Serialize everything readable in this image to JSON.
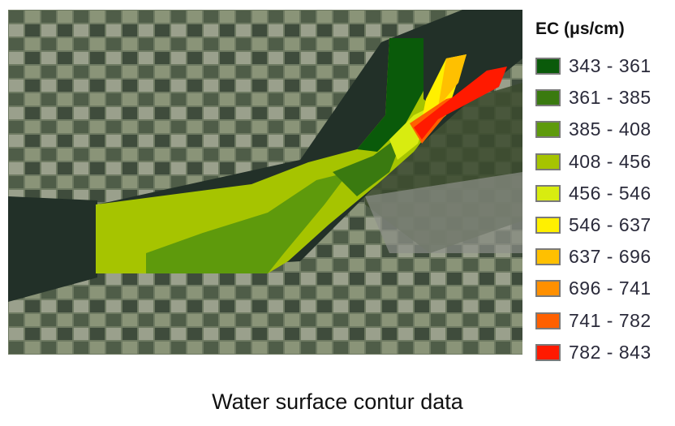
{
  "legend": {
    "title": "EC (μs/cm)",
    "items": [
      {
        "label": "343 - 361",
        "color": "#0a5a0a"
      },
      {
        "label": "361 - 385",
        "color": "#3a7a10"
      },
      {
        "label": "385 - 408",
        "color": "#5e9a0c"
      },
      {
        "label": "408 - 456",
        "color": "#a6c400"
      },
      {
        "label": "456 - 546",
        "color": "#d8ec10"
      },
      {
        "label": "546 - 637",
        "color": "#fff000"
      },
      {
        "label": "637 - 696",
        "color": "#ffc000"
      },
      {
        "label": "696 - 741",
        "color": "#ff9000"
      },
      {
        "label": "741 - 782",
        "color": "#ff6000"
      },
      {
        "label": "782 - 843",
        "color": "#ff1a00"
      }
    ]
  },
  "caption": "Water surface contur data"
}
